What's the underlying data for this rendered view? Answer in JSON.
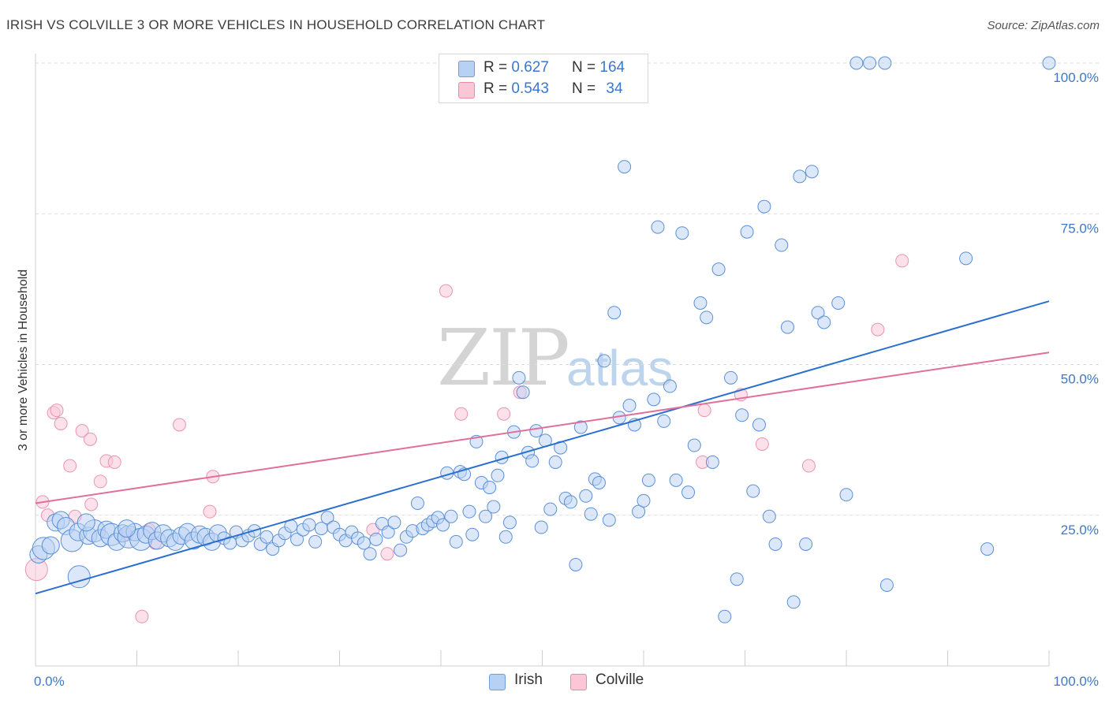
{
  "title": "IRISH VS COLVILLE 3 OR MORE VEHICLES IN HOUSEHOLD CORRELATION CHART",
  "source": "Source: ZipAtlas.com",
  "watermark": {
    "zip": "ZIP",
    "atlas": "atlas"
  },
  "legend": {
    "rows": [
      {
        "r_label": "R =",
        "r_value": "0.627",
        "n_label": "N =",
        "n_value": "164",
        "color": "#4a86d8"
      },
      {
        "r_label": "R =",
        "r_value": "0.543",
        "n_label": "N =",
        "n_value": "34",
        "color": "#e87aa0"
      }
    ]
  },
  "bottom_legend": {
    "irish": "Irish",
    "colville": "Colville"
  },
  "chart_data": {
    "type": "scatter",
    "title": "IRISH VS COLVILLE 3 OR MORE VEHICLES IN HOUSEHOLD CORRELATION CHART",
    "xlabel": "",
    "ylabel": "3 or more Vehicles in Household",
    "xlim": [
      0,
      100
    ],
    "ylim": [
      0,
      100
    ],
    "x_tick_labels": [
      "0.0%",
      "100.0%"
    ],
    "y_tick_labels": [
      "25.0%",
      "50.0%",
      "75.0%",
      "100.0%"
    ],
    "y_ticks": [
      25,
      50,
      75,
      100
    ],
    "grid": "horizontal dashed",
    "legend_placement": "top-center",
    "colors": {
      "irish_fill": "#b9d2f3",
      "irish_stroke": "#5a90d8",
      "irish_line": "#2a6fd0",
      "colville_fill": "#fbc9d8",
      "colville_stroke": "#e894b0",
      "colville_line": "#e0709a"
    },
    "series": [
      {
        "name": "Irish",
        "trend": {
          "x": [
            0,
            100
          ],
          "y": [
            12.0,
            60.5
          ]
        },
        "points": [
          [
            0.3,
            18.5,
            2
          ],
          [
            0.8,
            19.5,
            3
          ],
          [
            1.5,
            20.0,
            2
          ],
          [
            2.0,
            23.8,
            2
          ],
          [
            2.5,
            24.2,
            2
          ],
          [
            3.0,
            23.2,
            2
          ],
          [
            3.6,
            20.8,
            3
          ],
          [
            4.2,
            22.2,
            2
          ],
          [
            4.3,
            14.8,
            3
          ],
          [
            5.2,
            21.6,
            2
          ],
          [
            5.8,
            22.4,
            3
          ],
          [
            6.4,
            21.2,
            2
          ],
          [
            7.0,
            22.6,
            2
          ],
          [
            7.5,
            21.8,
            3
          ],
          [
            8.0,
            20.6,
            2
          ],
          [
            8.6,
            22.0,
            2
          ],
          [
            9.2,
            21.4,
            3
          ],
          [
            9.8,
            22.2,
            2
          ],
          [
            10.4,
            21.0,
            3
          ],
          [
            10.9,
            21.8,
            2
          ],
          [
            11.5,
            22.4,
            2
          ],
          [
            12.0,
            20.8,
            2
          ],
          [
            12.6,
            22.0,
            2
          ],
          [
            13.2,
            21.2,
            2
          ],
          [
            13.8,
            20.6,
            2
          ],
          [
            14.4,
            21.6,
            2
          ],
          [
            15.0,
            22.2,
            2
          ],
          [
            15.6,
            20.8,
            2
          ],
          [
            16.2,
            21.8,
            2
          ],
          [
            16.8,
            21.4,
            2
          ],
          [
            17.4,
            20.6,
            2
          ],
          [
            18.0,
            22.0,
            2
          ],
          [
            18.6,
            21.2,
            1
          ],
          [
            19.2,
            20.4,
            1
          ],
          [
            19.8,
            22.2,
            1
          ],
          [
            20.4,
            20.8,
            1
          ],
          [
            21.0,
            21.6,
            1
          ],
          [
            21.6,
            22.4,
            1
          ],
          [
            22.2,
            20.2,
            1
          ],
          [
            22.8,
            21.4,
            1
          ],
          [
            23.4,
            19.4,
            1
          ],
          [
            24.0,
            20.8,
            1
          ],
          [
            24.6,
            22.0,
            1
          ],
          [
            25.2,
            23.2,
            1
          ],
          [
            25.8,
            21.0,
            1
          ],
          [
            26.4,
            22.6,
            1
          ],
          [
            27.0,
            23.4,
            1
          ],
          [
            27.6,
            20.6,
            1
          ],
          [
            28.2,
            22.8,
            1
          ],
          [
            28.8,
            24.6,
            1
          ],
          [
            29.4,
            23.0,
            1
          ],
          [
            30.0,
            21.8,
            1
          ],
          [
            30.6,
            20.8,
            1
          ],
          [
            31.2,
            22.2,
            1
          ],
          [
            31.8,
            21.2,
            1
          ],
          [
            32.4,
            20.4,
            1
          ],
          [
            33.0,
            18.6,
            1
          ],
          [
            33.6,
            21.0,
            1
          ],
          [
            34.2,
            23.6,
            1
          ],
          [
            34.8,
            22.2,
            1
          ],
          [
            35.4,
            23.8,
            1
          ],
          [
            36.0,
            19.2,
            1
          ],
          [
            36.6,
            21.4,
            1
          ],
          [
            37.2,
            22.4,
            1
          ],
          [
            37.7,
            27.0,
            1
          ],
          [
            38.2,
            22.8,
            1
          ],
          [
            38.7,
            23.4,
            1
          ],
          [
            39.2,
            24.0,
            1
          ],
          [
            39.7,
            24.6,
            1
          ],
          [
            40.2,
            23.4,
            1
          ],
          [
            40.6,
            32.0,
            1
          ],
          [
            41.0,
            24.8,
            1
          ],
          [
            41.5,
            20.6,
            1
          ],
          [
            41.9,
            32.2,
            1
          ],
          [
            42.3,
            31.8,
            1
          ],
          [
            42.8,
            25.6,
            1
          ],
          [
            43.1,
            21.8,
            1
          ],
          [
            43.5,
            37.2,
            1
          ],
          [
            44.0,
            30.4,
            1
          ],
          [
            44.4,
            24.8,
            1
          ],
          [
            44.8,
            29.6,
            1
          ],
          [
            45.2,
            26.4,
            1
          ],
          [
            45.6,
            31.6,
            1
          ],
          [
            46.0,
            34.6,
            1
          ],
          [
            46.4,
            21.4,
            1
          ],
          [
            46.8,
            23.8,
            1
          ],
          [
            47.2,
            38.8,
            1
          ],
          [
            47.7,
            47.8,
            1
          ],
          [
            48.1,
            45.4,
            1
          ],
          [
            48.6,
            35.4,
            1
          ],
          [
            49.0,
            34.0,
            1
          ],
          [
            49.4,
            39.0,
            1
          ],
          [
            49.9,
            23.0,
            1
          ],
          [
            50.3,
            37.4,
            1
          ],
          [
            50.8,
            26.0,
            1
          ],
          [
            51.3,
            33.8,
            1
          ],
          [
            51.8,
            36.2,
            1
          ],
          [
            52.3,
            27.8,
            1
          ],
          [
            52.8,
            27.2,
            1
          ],
          [
            53.3,
            16.8,
            1
          ],
          [
            53.8,
            39.6,
            1
          ],
          [
            54.3,
            28.2,
            1
          ],
          [
            54.8,
            25.2,
            1
          ],
          [
            55.2,
            31.0,
            1
          ],
          [
            55.6,
            30.4,
            1
          ],
          [
            56.1,
            50.6,
            1
          ],
          [
            56.6,
            24.2,
            1
          ],
          [
            57.1,
            58.6,
            1
          ],
          [
            57.6,
            41.2,
            1
          ],
          [
            58.1,
            82.8,
            1
          ],
          [
            58.6,
            43.2,
            1
          ],
          [
            59.1,
            40.0,
            1
          ],
          [
            59.5,
            25.6,
            1
          ],
          [
            60.0,
            27.4,
            1
          ],
          [
            60.5,
            30.8,
            1
          ],
          [
            61.0,
            44.2,
            1
          ],
          [
            61.4,
            72.8,
            1
          ],
          [
            62.0,
            40.6,
            1
          ],
          [
            62.6,
            46.4,
            1
          ],
          [
            63.2,
            30.8,
            1
          ],
          [
            63.8,
            71.8,
            1
          ],
          [
            64.4,
            28.8,
            1
          ],
          [
            65.0,
            36.6,
            1
          ],
          [
            65.6,
            60.2,
            1
          ],
          [
            66.2,
            57.8,
            1
          ],
          [
            66.8,
            33.8,
            1
          ],
          [
            67.4,
            65.8,
            1
          ],
          [
            68.0,
            8.2,
            1
          ],
          [
            68.6,
            47.8,
            1
          ],
          [
            69.2,
            14.4,
            1
          ],
          [
            69.7,
            41.6,
            1
          ],
          [
            70.2,
            72.0,
            1
          ],
          [
            70.8,
            29.0,
            1
          ],
          [
            71.4,
            40.0,
            1
          ],
          [
            71.9,
            76.2,
            1
          ],
          [
            72.4,
            24.8,
            1
          ],
          [
            73.0,
            20.2,
            1
          ],
          [
            73.6,
            69.8,
            1
          ],
          [
            74.2,
            56.2,
            1
          ],
          [
            74.8,
            10.6,
            1
          ],
          [
            75.4,
            81.2,
            1
          ],
          [
            76.0,
            20.2,
            1
          ],
          [
            76.6,
            82.0,
            1
          ],
          [
            77.2,
            58.6,
            1
          ],
          [
            77.8,
            57.0,
            1
          ],
          [
            79.2,
            60.2,
            1
          ],
          [
            80.0,
            28.4,
            1
          ],
          [
            81.0,
            100.0,
            1
          ],
          [
            82.3,
            100.0,
            1
          ],
          [
            83.8,
            100.0,
            1
          ],
          [
            84.0,
            13.4,
            1
          ],
          [
            91.8,
            67.6,
            1
          ],
          [
            93.9,
            19.4,
            1
          ],
          [
            100.0,
            100.0,
            1
          ],
          [
            5.0,
            23.8,
            2
          ],
          [
            9.0,
            22.8,
            2
          ]
        ]
      },
      {
        "name": "Colville",
        "trend": {
          "x": [
            0,
            100
          ],
          "y": [
            27.0,
            52.0
          ]
        },
        "points": [
          [
            0.1,
            16.0,
            3
          ],
          [
            0.7,
            27.2,
            1
          ],
          [
            1.2,
            25.0,
            1
          ],
          [
            1.8,
            42.0,
            1
          ],
          [
            2.1,
            42.4,
            1
          ],
          [
            2.5,
            40.2,
            1
          ],
          [
            3.4,
            33.2,
            1
          ],
          [
            3.9,
            24.8,
            1
          ],
          [
            4.6,
            39.0,
            1
          ],
          [
            5.4,
            37.6,
            1
          ],
          [
            5.5,
            26.8,
            1
          ],
          [
            6.4,
            30.6,
            1
          ],
          [
            7.0,
            34.0,
            1
          ],
          [
            7.8,
            33.8,
            1
          ],
          [
            9.0,
            21.8,
            1
          ],
          [
            10.5,
            8.2,
            1
          ],
          [
            11.2,
            22.6,
            1
          ],
          [
            11.8,
            20.4,
            1
          ],
          [
            14.2,
            40.0,
            1
          ],
          [
            17.2,
            25.6,
            1
          ],
          [
            17.5,
            31.4,
            1
          ],
          [
            33.3,
            22.6,
            1
          ],
          [
            34.7,
            18.6,
            1
          ],
          [
            40.5,
            62.2,
            1
          ],
          [
            42.0,
            41.8,
            1
          ],
          [
            46.2,
            41.8,
            1
          ],
          [
            47.8,
            45.4,
            1
          ],
          [
            65.8,
            33.8,
            1
          ],
          [
            66.0,
            42.4,
            1
          ],
          [
            69.6,
            45.0,
            1
          ],
          [
            71.7,
            36.8,
            1
          ],
          [
            76.3,
            33.2,
            1
          ],
          [
            83.1,
            55.8,
            1
          ],
          [
            85.5,
            67.2,
            1
          ]
        ]
      }
    ]
  }
}
